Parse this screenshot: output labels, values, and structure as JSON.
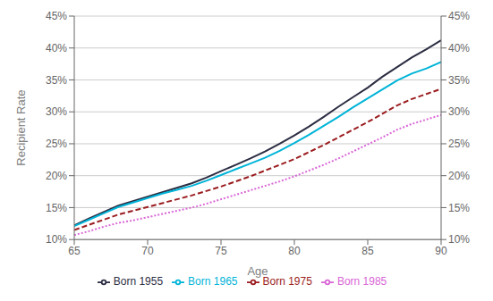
{
  "chart_data": {
    "type": "line",
    "xlabel": "Age",
    "ylabel": "Recipient Rate",
    "x": [
      65,
      66,
      67,
      68,
      69,
      70,
      71,
      72,
      73,
      74,
      75,
      76,
      77,
      78,
      79,
      80,
      81,
      82,
      83,
      84,
      85,
      86,
      87,
      88,
      89,
      90
    ],
    "series": [
      {
        "name": "Born 1955",
        "color": "#2b2d42",
        "line_style": "solid",
        "values": [
          0.122,
          0.133,
          0.143,
          0.153,
          0.16,
          0.167,
          0.174,
          0.181,
          0.188,
          0.197,
          0.207,
          0.217,
          0.227,
          0.238,
          0.25,
          0.263,
          0.277,
          0.292,
          0.308,
          0.323,
          0.338,
          0.355,
          0.37,
          0.385,
          0.398,
          0.412
        ]
      },
      {
        "name": "Born 1965",
        "color": "#00b4d8",
        "line_style": "solid",
        "values": [
          0.121,
          0.131,
          0.141,
          0.151,
          0.158,
          0.165,
          0.172,
          0.178,
          0.184,
          0.192,
          0.201,
          0.21,
          0.219,
          0.228,
          0.239,
          0.251,
          0.264,
          0.278,
          0.292,
          0.307,
          0.321,
          0.335,
          0.349,
          0.36,
          0.368,
          0.378
        ]
      },
      {
        "name": "Born 1975",
        "color": "#9b1d20",
        "line_style": "dashed",
        "values": [
          0.115,
          0.123,
          0.131,
          0.139,
          0.145,
          0.151,
          0.157,
          0.163,
          0.169,
          0.176,
          0.183,
          0.191,
          0.199,
          0.208,
          0.217,
          0.226,
          0.237,
          0.248,
          0.26,
          0.272,
          0.284,
          0.297,
          0.31,
          0.32,
          0.328,
          0.336
        ]
      },
      {
        "name": "Born 1985",
        "color": "#d966d6",
        "line_style": "dotted",
        "values": [
          0.107,
          0.113,
          0.12,
          0.126,
          0.13,
          0.135,
          0.14,
          0.145,
          0.15,
          0.156,
          0.163,
          0.17,
          0.177,
          0.184,
          0.191,
          0.199,
          0.208,
          0.217,
          0.227,
          0.238,
          0.249,
          0.26,
          0.272,
          0.281,
          0.288,
          0.295
        ]
      }
    ],
    "xlim": [
      65,
      90
    ],
    "xticks": [
      65,
      70,
      75,
      80,
      85,
      90
    ],
    "ylim": [
      0.1,
      0.45
    ],
    "yticks": [
      {
        "value": 0.1,
        "label": "10%"
      },
      {
        "value": 0.15,
        "label": "15%"
      },
      {
        "value": 0.2,
        "label": "20%"
      },
      {
        "value": 0.25,
        "label": "25%"
      },
      {
        "value": 0.3,
        "label": "30%"
      },
      {
        "value": 0.35,
        "label": "35%"
      },
      {
        "value": 0.4,
        "label": "40%"
      },
      {
        "value": 0.45,
        "label": "45%"
      }
    ],
    "y2lim": [
      0.1,
      0.45
    ],
    "y2ticks": [
      {
        "value": 0.1,
        "label": "10%"
      },
      {
        "value": 0.15,
        "label": "15%"
      },
      {
        "value": 0.2,
        "label": "20%"
      },
      {
        "value": 0.25,
        "label": "25%"
      },
      {
        "value": 0.3,
        "label": "30%"
      },
      {
        "value": 0.35,
        "label": "35%"
      },
      {
        "value": 0.4,
        "label": "40%"
      },
      {
        "value": 0.45,
        "label": "45%"
      }
    ],
    "grid": true,
    "legend": "bottom"
  }
}
